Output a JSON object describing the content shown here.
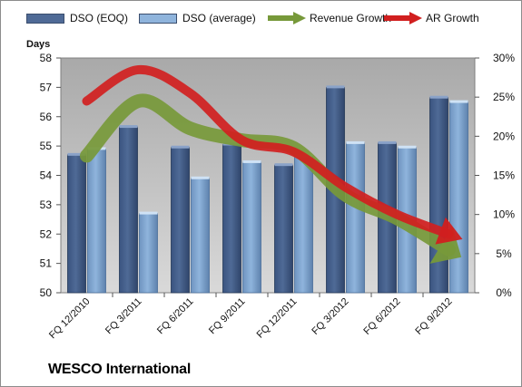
{
  "footer": {
    "company": "WESCO International"
  },
  "legend": {
    "dso_eoq": "DSO (EOQ)",
    "dso_avg": "DSO (average)",
    "revenue_growth": "Revenue Growth",
    "ar_growth": "AR Growth"
  },
  "colors": {
    "dso_eoq": "#4f6a96",
    "dso_avg": "#8fb4dc",
    "revenue_growth": "#77993a",
    "ar_growth": "#d11f1f",
    "plot_bg": "#b9b9b9"
  },
  "chart_data": {
    "type": "bar",
    "ylabel": "Days",
    "categories": [
      "FQ 12/2010",
      "FQ 3/2011",
      "FQ 6/2011",
      "FQ 9/2011",
      "FQ 12/2011",
      "FQ 3/2012",
      "FQ 6/2012",
      "FQ 9/2012"
    ],
    "ylim": [
      50,
      58
    ],
    "yticks": [
      "50",
      "51",
      "52",
      "53",
      "54",
      "55",
      "56",
      "57",
      "58"
    ],
    "y2lim": [
      0,
      30
    ],
    "y2ticks": [
      "0%",
      "5%",
      "10%",
      "15%",
      "20%",
      "25%",
      "30%"
    ],
    "series": [
      {
        "name": "DSO (EOQ)",
        "axis": "left",
        "values": [
          54.7,
          55.65,
          54.95,
          55.05,
          54.35,
          57.0,
          55.1,
          56.65
        ]
      },
      {
        "name": "DSO (average)",
        "axis": "left",
        "values": [
          54.9,
          52.7,
          53.9,
          54.45,
          54.65,
          55.1,
          54.95,
          56.5
        ]
      },
      {
        "name": "Revenue Growth",
        "axis": "right",
        "type": "line",
        "values": [
          17.5,
          24.5,
          21.0,
          19.5,
          18.5,
          12.5,
          9.5,
          5.5
        ]
      },
      {
        "name": "AR Growth",
        "axis": "right",
        "type": "line",
        "values": [
          24.5,
          28.5,
          25.5,
          19.5,
          18.0,
          13.5,
          10.0,
          7.5
        ]
      }
    ],
    "grid": false,
    "legend_position": "top"
  }
}
